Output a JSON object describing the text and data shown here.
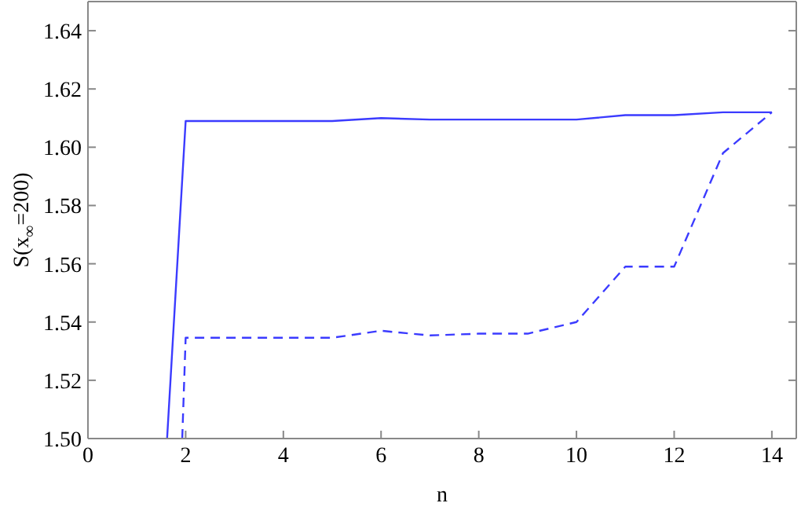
{
  "chart_data": {
    "type": "line",
    "xlabel": "n",
    "ylabel": "S(x$_{∞}$=200)",
    "xlim": [
      0,
      14.5
    ],
    "xticks": [
      0,
      2,
      4,
      6,
      8,
      10,
      12,
      14
    ],
    "ylim": [
      1.5,
      1.65
    ],
    "yticks": [
      {
        "value": 1.5,
        "label": "1.50"
      },
      {
        "value": 1.52,
        "label": "1.52"
      },
      {
        "value": 1.54,
        "label": "1.54"
      },
      {
        "value": 1.56,
        "label": "1.56"
      },
      {
        "value": 1.58,
        "label": "1.58"
      },
      {
        "value": 1.6,
        "label": "1.60"
      },
      {
        "value": 1.62,
        "label": "1.62"
      },
      {
        "value": 1.64,
        "label": "1.64"
      }
    ],
    "grid": false,
    "legend": false,
    "marker": "none",
    "series": [
      {
        "color": "#3b3bff",
        "line_style": "solid",
        "x": [
          1.62,
          2,
          3,
          4,
          5,
          6,
          7,
          8,
          9,
          10,
          11,
          12,
          13,
          14
        ],
        "values": [
          1.5,
          1.609,
          1.609,
          1.609,
          1.609,
          1.61,
          1.6095,
          1.6095,
          1.6095,
          1.6095,
          1.611,
          1.611,
          1.612,
          1.612
        ]
      },
      {
        "color": "#3b3bff",
        "line_style": "dashed",
        "x": [
          1.93,
          2,
          3,
          4,
          5,
          6,
          7,
          8,
          9,
          10,
          11,
          12,
          13,
          14
        ],
        "values": [
          1.5,
          1.5346,
          1.5346,
          1.5346,
          1.5346,
          1.537,
          1.5354,
          1.536,
          1.536,
          1.54,
          1.559,
          1.559,
          1.598,
          1.612
        ]
      }
    ]
  }
}
